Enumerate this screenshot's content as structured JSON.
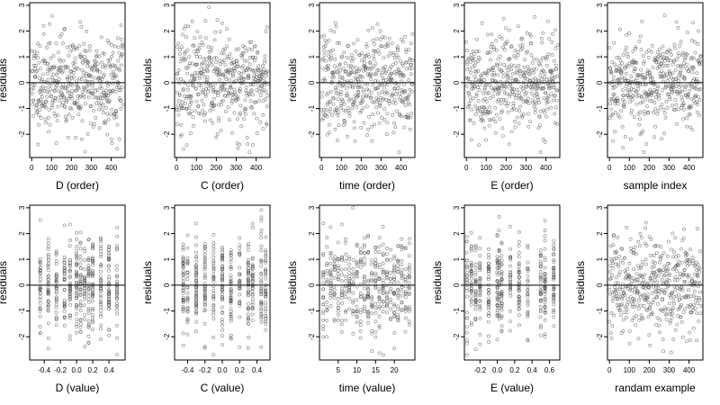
{
  "figure": {
    "description_free": true
  },
  "chart_data": [
    {
      "type": "scatter",
      "xlabel": "D (order)",
      "ylabel": "residuals",
      "xlim": [
        -10,
        470
      ],
      "ylim": [
        -2.9,
        3.1
      ],
      "xticks": [
        "0",
        "100",
        "200",
        "300",
        "400"
      ],
      "yticks": [
        "-2",
        "-1",
        "0",
        "1",
        "2",
        "3"
      ],
      "reference_line": 0,
      "x_kind": "order",
      "seed": 11
    },
    {
      "type": "scatter",
      "xlabel": "C (order)",
      "ylabel": "residuals",
      "xlim": [
        -10,
        470
      ],
      "ylim": [
        -2.9,
        3.1
      ],
      "xticks": [
        "0",
        "100",
        "200",
        "300",
        "400"
      ],
      "yticks": [
        "-2",
        "-1",
        "0",
        "1",
        "2",
        "3"
      ],
      "reference_line": 0,
      "x_kind": "order",
      "seed": 23
    },
    {
      "type": "scatter",
      "xlabel": "time (order)",
      "ylabel": "residuals",
      "xlim": [
        -10,
        470
      ],
      "ylim": [
        -2.9,
        3.1
      ],
      "xticks": [
        "0",
        "100",
        "200",
        "300",
        "400"
      ],
      "yticks": [
        "-2",
        "-1",
        "0",
        "1",
        "2",
        "3"
      ],
      "reference_line": 0,
      "x_kind": "order",
      "seed": 37
    },
    {
      "type": "scatter",
      "xlabel": "E (order)",
      "ylabel": "residuals",
      "xlim": [
        -10,
        470
      ],
      "ylim": [
        -2.9,
        3.1
      ],
      "xticks": [
        "0",
        "100",
        "200",
        "300",
        "400"
      ],
      "yticks": [
        "-2",
        "-1",
        "0",
        "1",
        "2",
        "3"
      ],
      "reference_line": 0,
      "x_kind": "order",
      "seed": 41
    },
    {
      "type": "scatter",
      "xlabel": "sample index",
      "ylabel": "residuals",
      "xlim": [
        -10,
        470
      ],
      "ylim": [
        -2.9,
        3.1
      ],
      "xticks": [
        "0",
        "100",
        "200",
        "300",
        "400"
      ],
      "yticks": [
        "-2",
        "-1",
        "0",
        "1",
        "2",
        "3"
      ],
      "reference_line": 0,
      "x_kind": "order",
      "seed": 53
    },
    {
      "type": "scatter",
      "xlabel": "D (value)",
      "ylabel": "residuals",
      "xlim": [
        -0.58,
        0.6
      ],
      "ylim": [
        -2.9,
        3.1
      ],
      "xticks": [
        "-0.4",
        "-0.2",
        "0.0",
        "0.2",
        "0.4"
      ],
      "xtick_values": [
        -0.4,
        -0.2,
        0.0,
        0.2,
        0.4
      ],
      "yticks": [
        "-2",
        "-1",
        "0",
        "1",
        "2",
        "3"
      ],
      "reference_line": 0,
      "x_kind": "value",
      "clusters": [
        -0.45,
        -0.35,
        -0.25,
        -0.15,
        -0.08,
        0.0,
        0.05,
        0.1,
        0.15,
        0.2,
        0.3,
        0.4,
        0.5
      ],
      "seed": 61
    },
    {
      "type": "scatter",
      "xlabel": "C (value)",
      "ylabel": "residuals",
      "xlim": [
        -0.55,
        0.55
      ],
      "ylim": [
        -2.9,
        3.1
      ],
      "xticks": [
        "-0.4",
        "-0.2",
        "0.0",
        "0.2",
        "0.4"
      ],
      "xtick_values": [
        -0.4,
        -0.2,
        0.0,
        0.2,
        0.4
      ],
      "yticks": [
        "-2",
        "-1",
        "0",
        "1",
        "2",
        "3"
      ],
      "reference_line": 0,
      "x_kind": "value",
      "clusters": [
        -0.45,
        -0.4,
        -0.3,
        -0.2,
        -0.1,
        0.0,
        0.1,
        0.2,
        0.3,
        0.35,
        0.45,
        0.5
      ],
      "seed": 73
    },
    {
      "type": "scatter",
      "xlabel": "time (value)",
      "ylabel": "residuals",
      "xlim": [
        0,
        25.5
      ],
      "ylim": [
        -2.9,
        3.1
      ],
      "xticks": [
        "5",
        "10",
        "15",
        "20"
      ],
      "xtick_values": [
        5,
        10,
        15,
        20
      ],
      "yticks": [
        "-2",
        "-1",
        "0",
        "1",
        "2",
        "3"
      ],
      "reference_line": 0,
      "x_kind": "value",
      "clusters": [
        1,
        2,
        3,
        4,
        5,
        6,
        7,
        8,
        9,
        10,
        11,
        12,
        13,
        14,
        15,
        16,
        17,
        18,
        19,
        20,
        21,
        22,
        23,
        24
      ],
      "seed": 83
    },
    {
      "type": "scatter",
      "xlabel": "E (value)",
      "ylabel": "residuals",
      "xlim": [
        -0.38,
        0.72
      ],
      "ylim": [
        -2.9,
        3.1
      ],
      "xticks": [
        "-0.2",
        "0.0",
        "0.2",
        "0.4",
        "0.6"
      ],
      "xtick_values": [
        -0.2,
        0.0,
        0.2,
        0.4,
        0.6
      ],
      "yticks": [
        "-2",
        "-1",
        "0",
        "1",
        "2",
        "3"
      ],
      "reference_line": 0,
      "x_kind": "value",
      "clusters": [
        -0.35,
        -0.3,
        -0.25,
        -0.2,
        -0.1,
        0.0,
        0.02,
        0.05,
        0.15,
        0.25,
        0.35,
        0.5,
        0.55,
        0.65
      ],
      "seed": 97
    },
    {
      "type": "scatter",
      "xlabel": "randam example",
      "ylabel": "residuals",
      "xlim": [
        -10,
        470
      ],
      "ylim": [
        -2.9,
        3.1
      ],
      "xticks": [
        "0",
        "100",
        "200",
        "300",
        "400"
      ],
      "yticks": [
        "-2",
        "-1",
        "0",
        "1",
        "2",
        "3"
      ],
      "reference_line": 0,
      "x_kind": "order",
      "seed": 101
    }
  ]
}
